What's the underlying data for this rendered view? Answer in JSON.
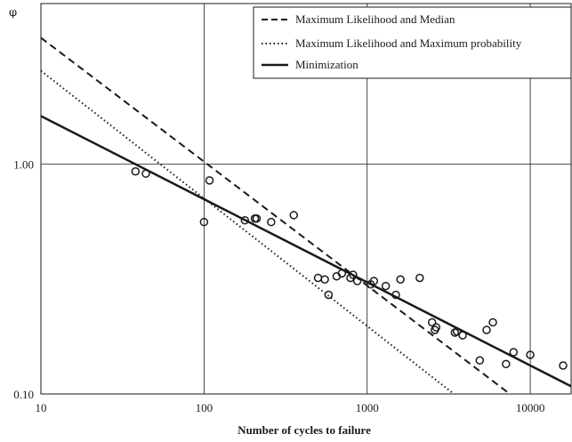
{
  "chart_data": {
    "type": "scatter",
    "xscale": "log",
    "yscale": "log",
    "xlim": [
      10,
      17800
    ],
    "ylim": [
      0.1,
      5.0
    ],
    "grid": true,
    "xlabel": "Number of cycles to failure",
    "ylabel": "φ",
    "xticks": [
      10,
      100,
      1000,
      10000
    ],
    "xtick_labels": [
      "10",
      "100",
      "1000",
      "10000"
    ],
    "yticks": [
      0.1,
      1.0
    ],
    "ytick_labels": [
      "0.10",
      "1.00"
    ],
    "legend_position": "top-right",
    "points": [
      {
        "x": 38,
        "y": 0.93
      },
      {
        "x": 44,
        "y": 0.91
      },
      {
        "x": 100,
        "y": 0.56
      },
      {
        "x": 108,
        "y": 0.85
      },
      {
        "x": 178,
        "y": 0.57
      },
      {
        "x": 205,
        "y": 0.58
      },
      {
        "x": 210,
        "y": 0.58
      },
      {
        "x": 258,
        "y": 0.56
      },
      {
        "x": 355,
        "y": 0.6
      },
      {
        "x": 500,
        "y": 0.32
      },
      {
        "x": 550,
        "y": 0.315
      },
      {
        "x": 580,
        "y": 0.27
      },
      {
        "x": 650,
        "y": 0.325
      },
      {
        "x": 700,
        "y": 0.335
      },
      {
        "x": 790,
        "y": 0.32
      },
      {
        "x": 820,
        "y": 0.33
      },
      {
        "x": 870,
        "y": 0.31
      },
      {
        "x": 1050,
        "y": 0.3
      },
      {
        "x": 1100,
        "y": 0.31
      },
      {
        "x": 1300,
        "y": 0.295
      },
      {
        "x": 1500,
        "y": 0.27
      },
      {
        "x": 1600,
        "y": 0.315
      },
      {
        "x": 2100,
        "y": 0.32
      },
      {
        "x": 2500,
        "y": 0.205
      },
      {
        "x": 2600,
        "y": 0.19
      },
      {
        "x": 2650,
        "y": 0.195
      },
      {
        "x": 3450,
        "y": 0.185
      },
      {
        "x": 3550,
        "y": 0.187
      },
      {
        "x": 3850,
        "y": 0.18
      },
      {
        "x": 4900,
        "y": 0.14
      },
      {
        "x": 5400,
        "y": 0.19
      },
      {
        "x": 5900,
        "y": 0.205
      },
      {
        "x": 7100,
        "y": 0.135
      },
      {
        "x": 7900,
        "y": 0.152
      },
      {
        "x": 10000,
        "y": 0.148
      },
      {
        "x": 15900,
        "y": 0.133
      }
    ],
    "series": [
      {
        "name": "Maximum Likelihood and Median",
        "style": "dashed",
        "x": [
          10,
          7500
        ],
        "y": [
          3.55,
          0.1
        ]
      },
      {
        "name": "Maximum Likelihood and Maximum probability",
        "style": "dotted",
        "x": [
          10,
          3400
        ],
        "y": [
          2.55,
          0.1
        ]
      },
      {
        "name": "Minimization",
        "style": "solid",
        "x": [
          10,
          17800
        ],
        "y": [
          1.62,
          0.108
        ]
      }
    ],
    "colors": {
      "line": "#1a1a1a",
      "grid": "#1a1a1a",
      "background": "#ffffff"
    }
  }
}
